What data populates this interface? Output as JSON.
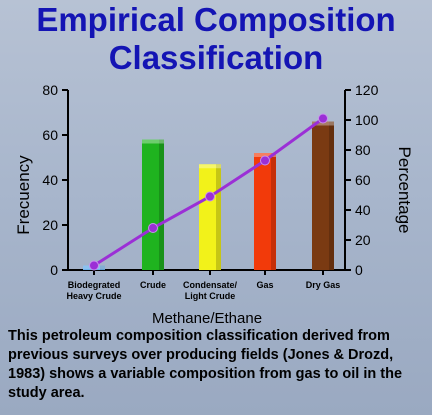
{
  "title_line1": "Empirical Composition",
  "title_line2": "Classification",
  "caption": "This petroleum composition classification derived from previous surveys over producing fields (Jones & Drozd, 1983) shows a variable composition from gas to oil in the study area.",
  "chart_data": {
    "type": "bar",
    "title": "Empirical Composition Classification",
    "xlabel": "Methane/Ethane",
    "ylabel": "Frecuency",
    "y2label": "Percentage",
    "categories": [
      "Biodegrated Heavy Crude",
      "Crude",
      "Condensate/ Light Crude",
      "Gas",
      "Dry Gas"
    ],
    "category_lines": [
      [
        "Biodegrated",
        "Heavy Crude"
      ],
      [
        "Crude"
      ],
      [
        "Condensate/",
        "Light Crude"
      ],
      [
        "Gas"
      ],
      [
        "Dry Gas"
      ]
    ],
    "bars": {
      "values": [
        2,
        58,
        47,
        52,
        66
      ],
      "colors": [
        "#4da0e6",
        "#1fb31f",
        "#f2f21a",
        "#f23a0a",
        "#7a3a12"
      ]
    },
    "line": {
      "axis": "right",
      "color": "#9b2fd6",
      "values": [
        3,
        28,
        49,
        73,
        101
      ]
    },
    "ylim": [
      0,
      80
    ],
    "yticks": [
      "0",
      "20",
      "40",
      "60",
      "80"
    ],
    "y2lim": [
      0,
      120
    ],
    "y2ticks": [
      "0",
      "20",
      "40",
      "60",
      "80",
      "100",
      "120"
    ],
    "grid": false,
    "legend": "none"
  }
}
